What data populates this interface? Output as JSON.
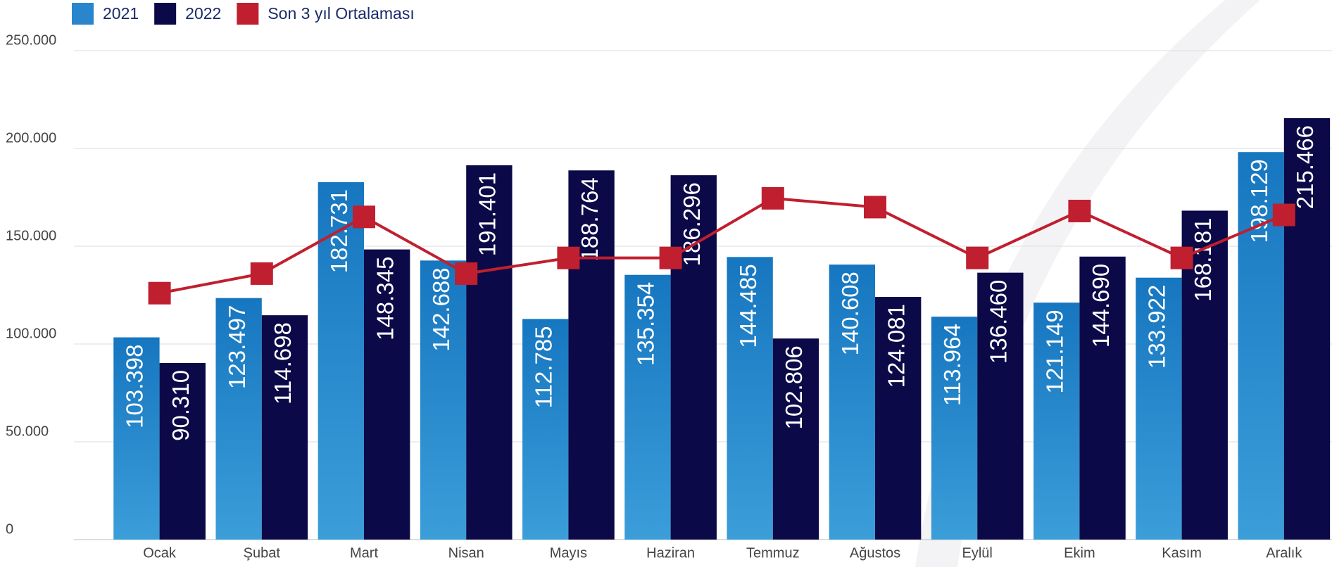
{
  "chart_data": {
    "type": "bar",
    "categories": [
      "Ocak",
      "Şubat",
      "Mart",
      "Nisan",
      "Mayıs",
      "Haziran",
      "Temmuz",
      "Ağustos",
      "Eylül",
      "Ekim",
      "Kasım",
      "Aralık"
    ],
    "series": [
      {
        "name": "2021",
        "color": "#2a86cc",
        "values": [
          103398,
          123497,
          182731,
          142688,
          112785,
          135354,
          144485,
          140608,
          113964,
          121149,
          133922,
          198129
        ],
        "value_labels": [
          "103.398",
          "123.497",
          "182.731",
          "142.688",
          "112.785",
          "135.354",
          "144.485",
          "140.608",
          "113.964",
          "121.149",
          "133.922",
          "198.129"
        ]
      },
      {
        "name": "2022",
        "color": "#0b0947",
        "values": [
          90310,
          114698,
          148345,
          191401,
          188764,
          186296,
          102806,
          124081,
          136460,
          144690,
          168181,
          215466
        ],
        "value_labels": [
          "90.310",
          "114.698",
          "148.345",
          "191.401",
          "188.764",
          "186.296",
          "102.806",
          "124.081",
          "136.460",
          "144.690",
          "168.181",
          "215.466"
        ]
      },
      {
        "name": "Son 3 yıl Ortalaması",
        "color": "#c01f2f",
        "type": "line",
        "values": [
          126000,
          136000,
          165000,
          136000,
          144000,
          144000,
          174500,
          170000,
          144000,
          168000,
          144000,
          166000
        ]
      }
    ],
    "ylim": [
      0,
      250000
    ],
    "yticks": [
      0,
      {
        "value": 50000,
        "label": "50.000"
      },
      {
        "value": 100000,
        "label": "100.000"
      },
      {
        "value": 150000,
        "label": "150.000"
      },
      {
        "value": 200000,
        "label": "200.000"
      },
      {
        "value": 250000,
        "label": "250.000"
      }
    ],
    "grid": true,
    "legend": "top-left"
  }
}
